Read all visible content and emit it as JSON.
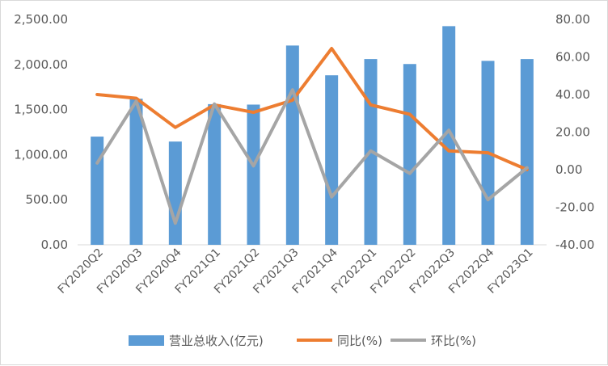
{
  "chart_data": {
    "type": "bar",
    "categories": [
      "FY2020Q2",
      "FY2020Q3",
      "FY2020Q4",
      "FY2021Q1",
      "FY2021Q2",
      "FY2021Q3",
      "FY2021Q4",
      "FY2022Q1",
      "FY2022Q2",
      "FY2022Q3",
      "FY2022Q4",
      "FY2023Q1"
    ],
    "series": [
      {
        "name": "营业总收入(亿元)",
        "kind": "bar",
        "axis": "left",
        "color": "#5b9bd5",
        "values": [
          1200,
          1620,
          1145,
          1560,
          1555,
          2210,
          1880,
          2060,
          2005,
          2425,
          2040,
          2060
        ]
      },
      {
        "name": "同比(%)",
        "kind": "line",
        "axis": "right",
        "color": "#ed7d31",
        "values": [
          40,
          38,
          22.5,
          34.5,
          30.5,
          37,
          64.5,
          34.5,
          29.5,
          10,
          9,
          0
        ]
      },
      {
        "name": "环比(%)",
        "kind": "line",
        "axis": "right",
        "color": "#a5a5a5",
        "values": [
          3.5,
          36.5,
          -28.5,
          35,
          2,
          42.5,
          -14.5,
          10,
          -2,
          21,
          -16,
          1
        ]
      }
    ],
    "left_axis": {
      "min": 0,
      "max": 2500,
      "step": 500,
      "tick_labels": [
        "0.00",
        "500.00",
        "1,000.00",
        "1,500.00",
        "2,000.00",
        "2,500.00"
      ]
    },
    "right_axis": {
      "min": -40,
      "max": 80,
      "step": 20,
      "tick_labels": [
        "-40.00",
        "-20.00",
        "0.00",
        "20.00",
        "40.00",
        "60.00",
        "80.00"
      ]
    },
    "grid": false,
    "legend_position": "bottom"
  }
}
